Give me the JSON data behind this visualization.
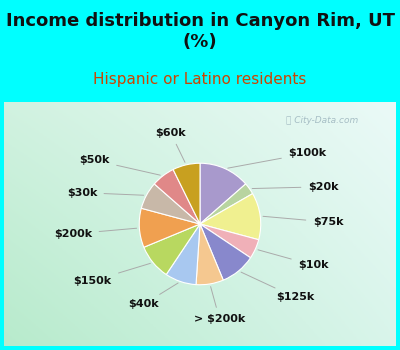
{
  "title": "Income distribution in Canyon Rim, UT\n(%)",
  "subtitle": "Hispanic or Latino residents",
  "background_color": "#00FFFF",
  "labels_cw": [
    "$100k",
    "$20k",
    "$75k",
    "$10k",
    "$125k",
    "> $200k",
    "$40k",
    "$150k",
    "$200k",
    "$30k",
    "$50k",
    "$60k"
  ],
  "values_cw": [
    13,
    3,
    12,
    5,
    9,
    7,
    8,
    9,
    10,
    7,
    6,
    7
  ],
  "colors_cw": [
    "#a899cc",
    "#b8d4a0",
    "#f0f090",
    "#f0b0b8",
    "#8888cc",
    "#f5c890",
    "#a8c8f0",
    "#b8d860",
    "#f0a050",
    "#c8b8a8",
    "#e08888",
    "#c8a020"
  ],
  "title_fontsize": 13,
  "subtitle_fontsize": 11,
  "label_fontsize": 8
}
